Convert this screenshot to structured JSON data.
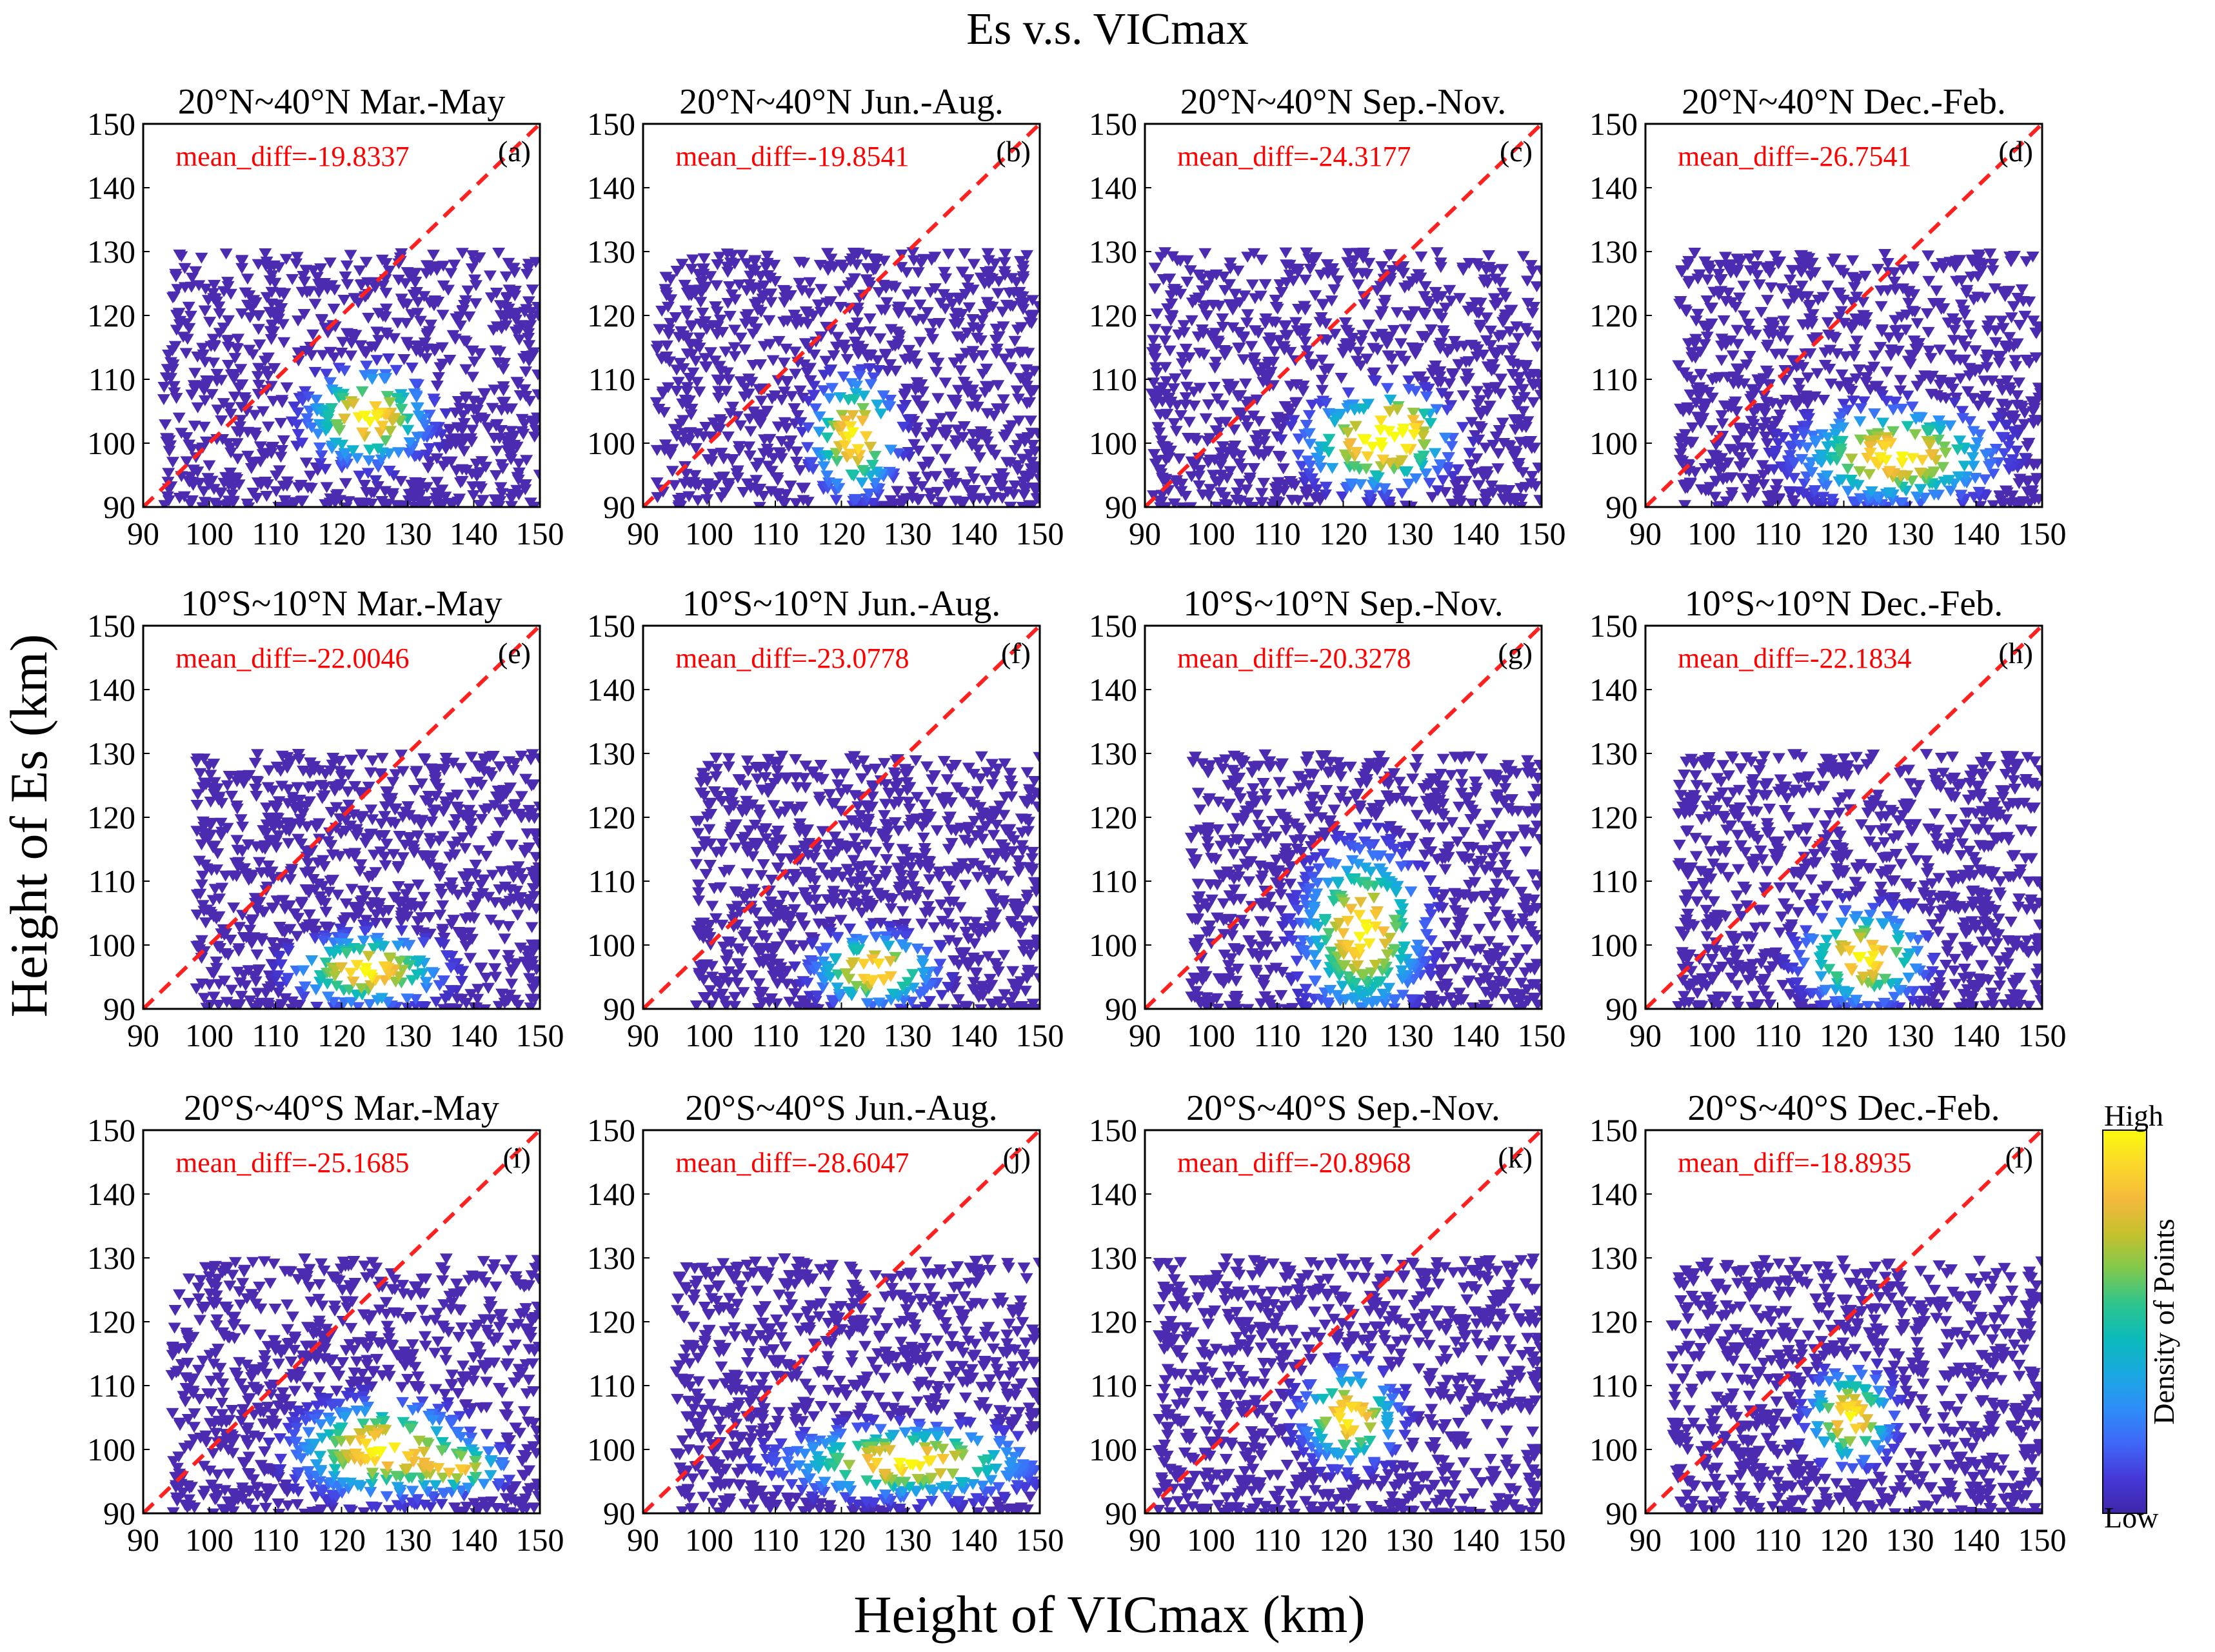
{
  "figure_title": "Es v.s. VICmax",
  "xlabel": "Height of VICmax (km)",
  "ylabel": "Height of Es (km)",
  "colorbar": {
    "label": "Density of Points",
    "high": "High",
    "low": "Low"
  },
  "colors": {
    "reference_line": "#ff2020",
    "marker_low": "#4b2bb0",
    "colormap": [
      "#3e26a8",
      "#4538d7",
      "#3f67f7",
      "#2e8ef8",
      "#1aa8e0",
      "#0bbbbb",
      "#2dc48e",
      "#7dc94e",
      "#c4c12e",
      "#f4b93b",
      "#fbd72a",
      "#f9fb0e"
    ]
  },
  "chart_data": [
    {
      "id": "a",
      "type": "scatter",
      "title": "20°N~40°N Mar.-May",
      "annotation": "mean_diff=-19.8337",
      "label": "(a)",
      "xlim": [
        90,
        150
      ],
      "ylim": [
        90,
        150
      ],
      "xticks": [
        90,
        100,
        110,
        120,
        130,
        140,
        150
      ],
      "yticks": [
        90,
        100,
        110,
        120,
        130,
        140,
        150
      ],
      "reference_line": [
        [
          90,
          90
        ],
        [
          150,
          150
        ]
      ],
      "x_extent": [
        93,
        150
      ],
      "y_extent": [
        90,
        130
      ],
      "cores": [
        {
          "x": 124,
          "y": 104,
          "sx": 5,
          "sy": 4,
          "w": 1.0
        }
      ]
    },
    {
      "id": "b",
      "type": "scatter",
      "title": "20°N~40°N Jun.-Aug.",
      "annotation": "mean_diff=-19.8541",
      "label": "(b)",
      "xlim": [
        90,
        150
      ],
      "ylim": [
        90,
        150
      ],
      "xticks": [
        90,
        100,
        110,
        120,
        130,
        140,
        150
      ],
      "yticks": [
        90,
        100,
        110,
        120,
        130,
        140,
        150
      ],
      "reference_line": [
        [
          90,
          90
        ],
        [
          150,
          150
        ]
      ],
      "x_extent": [
        92,
        150
      ],
      "y_extent": [
        90,
        130
      ],
      "cores": [
        {
          "x": 122,
          "y": 101,
          "sx": 3.5,
          "sy": 5,
          "w": 1.0
        }
      ]
    },
    {
      "id": "c",
      "type": "scatter",
      "title": "20°N~40°N Sep.-Nov.",
      "annotation": "mean_diff=-24.3177",
      "label": "(c)",
      "xlim": [
        90,
        150
      ],
      "ylim": [
        90,
        150
      ],
      "xticks": [
        90,
        100,
        110,
        120,
        130,
        140,
        150
      ],
      "yticks": [
        90,
        100,
        110,
        120,
        130,
        140,
        150
      ],
      "reference_line": [
        [
          90,
          90
        ],
        [
          150,
          150
        ]
      ],
      "x_extent": [
        91,
        150
      ],
      "y_extent": [
        90,
        130
      ],
      "cores": [
        {
          "x": 125,
          "y": 100,
          "sx": 6,
          "sy": 4,
          "w": 1.0
        },
        {
          "x": 129,
          "y": 103,
          "sx": 3,
          "sy": 3,
          "w": 0.5
        }
      ]
    },
    {
      "id": "d",
      "type": "scatter",
      "title": "20°N~40°N Dec.-Feb.",
      "annotation": "mean_diff=-26.7541",
      "label": "(d)",
      "xlim": [
        90,
        150
      ],
      "ylim": [
        90,
        150
      ],
      "xticks": [
        90,
        100,
        110,
        120,
        130,
        140,
        150
      ],
      "yticks": [
        90,
        100,
        110,
        120,
        130,
        140,
        150
      ],
      "reference_line": [
        [
          90,
          90
        ],
        [
          150,
          150
        ]
      ],
      "x_extent": [
        95,
        150
      ],
      "y_extent": [
        90,
        130
      ],
      "cores": [
        {
          "x": 128,
          "y": 98,
          "sx": 8,
          "sy": 4,
          "w": 1.0
        }
      ]
    },
    {
      "id": "e",
      "type": "scatter",
      "title": "10°S~10°N Mar.-May",
      "annotation": "mean_diff=-22.0046",
      "label": "(e)",
      "xlim": [
        90,
        150
      ],
      "ylim": [
        90,
        150
      ],
      "xticks": [
        90,
        100,
        110,
        120,
        130,
        140,
        150
      ],
      "yticks": [
        90,
        100,
        110,
        120,
        130,
        140,
        150
      ],
      "reference_line": [
        [
          90,
          90
        ],
        [
          150,
          150
        ]
      ],
      "x_extent": [
        98,
        150
      ],
      "y_extent": [
        90,
        130
      ],
      "cores": [
        {
          "x": 124,
          "y": 96,
          "sx": 6,
          "sy": 3,
          "w": 1.0
        }
      ]
    },
    {
      "id": "f",
      "type": "scatter",
      "title": "10°S~10°N Jun.-Aug.",
      "annotation": "mean_diff=-23.0778",
      "label": "(f)",
      "xlim": [
        90,
        150
      ],
      "ylim": [
        90,
        150
      ],
      "xticks": [
        90,
        100,
        110,
        120,
        130,
        140,
        150
      ],
      "yticks": [
        90,
        100,
        110,
        120,
        130,
        140,
        150
      ],
      "reference_line": [
        [
          90,
          90
        ],
        [
          150,
          150
        ]
      ],
      "x_extent": [
        98,
        150
      ],
      "y_extent": [
        90,
        130
      ],
      "cores": [
        {
          "x": 125,
          "y": 96,
          "sx": 5,
          "sy": 3,
          "w": 1.0
        }
      ]
    },
    {
      "id": "g",
      "type": "scatter",
      "title": "10°S~10°N Sep.-Nov.",
      "annotation": "mean_diff=-20.3278",
      "label": "(g)",
      "xlim": [
        90,
        150
      ],
      "ylim": [
        90,
        150
      ],
      "xticks": [
        90,
        100,
        110,
        120,
        130,
        140,
        150
      ],
      "yticks": [
        90,
        100,
        110,
        120,
        130,
        140,
        150
      ],
      "reference_line": [
        [
          90,
          90
        ],
        [
          150,
          150
        ]
      ],
      "x_extent": [
        97,
        150
      ],
      "y_extent": [
        90,
        130
      ],
      "cores": [
        {
          "x": 123,
          "y": 102,
          "sx": 5,
          "sy": 7,
          "w": 1.0
        }
      ]
    },
    {
      "id": "h",
      "type": "scatter",
      "title": "10°S~10°N Dec.-Feb.",
      "annotation": "mean_diff=-22.1834",
      "label": "(h)",
      "xlim": [
        90,
        150
      ],
      "ylim": [
        90,
        150
      ],
      "xticks": [
        90,
        100,
        110,
        120,
        130,
        140,
        150
      ],
      "yticks": [
        90,
        100,
        110,
        120,
        130,
        140,
        150
      ],
      "reference_line": [
        [
          90,
          90
        ],
        [
          150,
          150
        ]
      ],
      "x_extent": [
        95,
        150
      ],
      "y_extent": [
        90,
        130
      ],
      "cores": [
        {
          "x": 123,
          "y": 98,
          "sx": 5,
          "sy": 4,
          "w": 1.0
        }
      ]
    },
    {
      "id": "i",
      "type": "scatter",
      "title": "20°S~40°S Mar.-May",
      "annotation": "mean_diff=-25.1685",
      "label": "(i)",
      "xlim": [
        90,
        150
      ],
      "ylim": [
        90,
        150
      ],
      "xticks": [
        90,
        100,
        110,
        120,
        130,
        140,
        150
      ],
      "yticks": [
        90,
        100,
        110,
        120,
        130,
        140,
        150
      ],
      "reference_line": [
        [
          90,
          90
        ],
        [
          150,
          150
        ]
      ],
      "x_extent": [
        94,
        150
      ],
      "y_extent": [
        90,
        130
      ],
      "cores": [
        {
          "x": 126,
          "y": 100,
          "sx": 7,
          "sy": 4,
          "w": 1.0
        },
        {
          "x": 138,
          "y": 97,
          "sx": 4,
          "sy": 2,
          "w": 0.7
        }
      ]
    },
    {
      "id": "j",
      "type": "scatter",
      "title": "20°S~40°S Jun.-Aug.",
      "annotation": "mean_diff=-28.6047",
      "label": "(j)",
      "xlim": [
        90,
        150
      ],
      "ylim": [
        90,
        150
      ],
      "xticks": [
        90,
        100,
        110,
        120,
        130,
        140,
        150
      ],
      "yticks": [
        90,
        100,
        110,
        120,
        130,
        140,
        150
      ],
      "reference_line": [
        [
          90,
          90
        ],
        [
          150,
          150
        ]
      ],
      "x_extent": [
        95,
        150
      ],
      "y_extent": [
        90,
        130
      ],
      "cores": [
        {
          "x": 130,
          "y": 98,
          "sx": 10,
          "sy": 3,
          "w": 1.0
        }
      ]
    },
    {
      "id": "k",
      "type": "scatter",
      "title": "20°S~40°S Sep.-Nov.",
      "annotation": "mean_diff=-20.8968",
      "label": "(k)",
      "xlim": [
        90,
        150
      ],
      "ylim": [
        90,
        150
      ],
      "xticks": [
        90,
        100,
        110,
        120,
        130,
        140,
        150
      ],
      "yticks": [
        90,
        100,
        110,
        120,
        130,
        140,
        150
      ],
      "reference_line": [
        [
          90,
          90
        ],
        [
          150,
          150
        ]
      ],
      "x_extent": [
        92,
        150
      ],
      "y_extent": [
        90,
        130
      ],
      "cores": [
        {
          "x": 121,
          "y": 105,
          "sx": 4,
          "sy": 4,
          "w": 1.0
        }
      ]
    },
    {
      "id": "l",
      "type": "scatter",
      "title": "20°S~40°S Dec.-Feb.",
      "annotation": "mean_diff=-18.8935",
      "label": "(l)",
      "xlim": [
        90,
        150
      ],
      "ylim": [
        90,
        150
      ],
      "xticks": [
        90,
        100,
        110,
        120,
        130,
        140,
        150
      ],
      "yticks": [
        90,
        100,
        110,
        120,
        130,
        140,
        150
      ],
      "reference_line": [
        [
          90,
          90
        ],
        [
          150,
          150
        ]
      ],
      "x_extent": [
        94,
        150
      ],
      "y_extent": [
        90,
        130
      ],
      "cores": [
        {
          "x": 121,
          "y": 105,
          "sx": 3.5,
          "sy": 4,
          "w": 1.0
        }
      ]
    }
  ]
}
